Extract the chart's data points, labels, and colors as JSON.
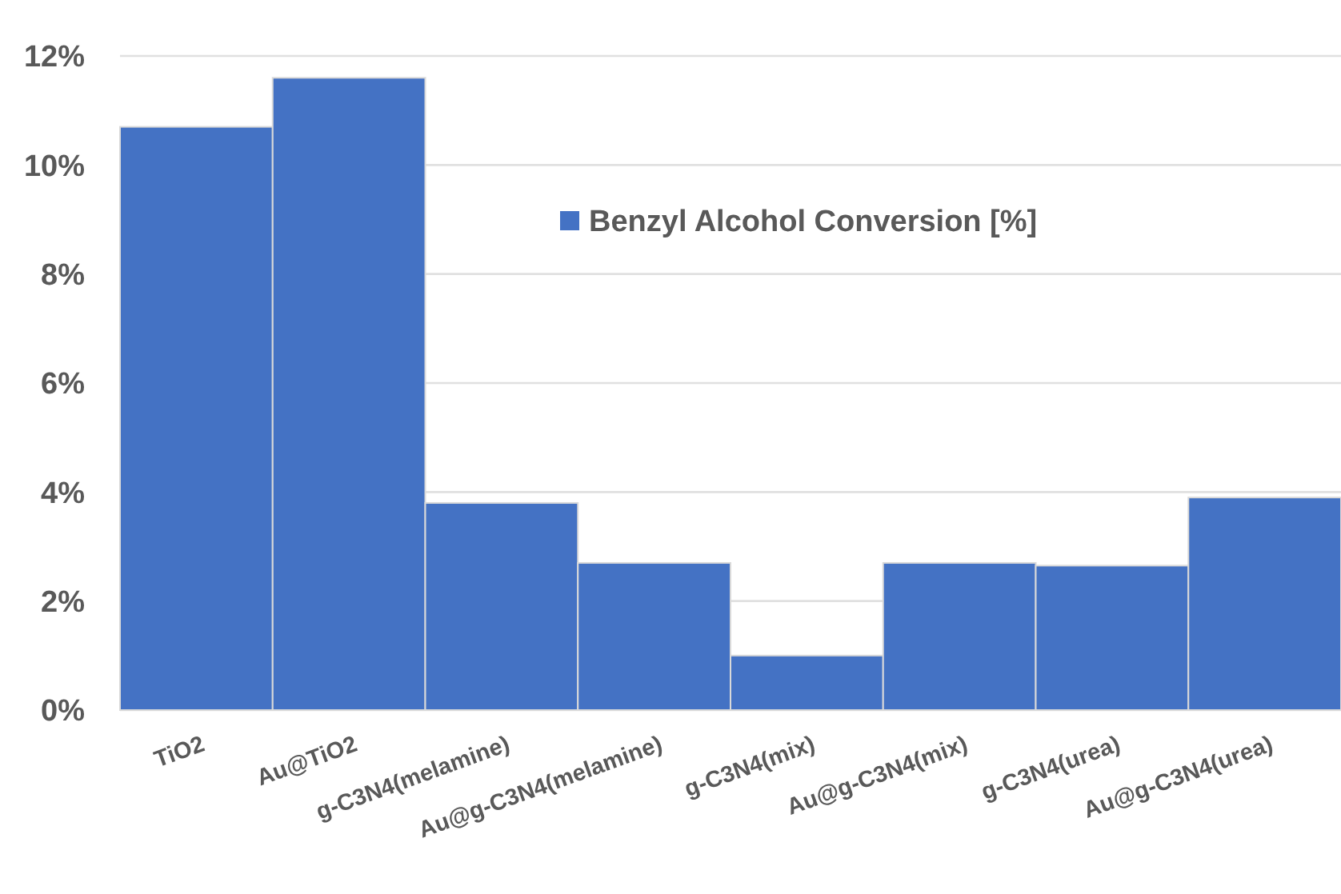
{
  "chart_data": {
    "type": "bar",
    "categories": [
      "TiO2",
      "Au@TiO2",
      "g-C3N4(melamine)",
      "Au@g-C3N4(melamine)",
      "g-C3N4(mix)",
      "Au@g-C3N4(mix)",
      "g-C3N4(urea)",
      "Au@g-C3N4(urea)"
    ],
    "series": [
      {
        "name": "Benzyl Alcohol Conversion [%]",
        "color": "#4472c4",
        "values": [
          10.7,
          11.6,
          3.8,
          2.7,
          1.0,
          2.7,
          2.65,
          3.9
        ]
      }
    ],
    "ylim": [
      0,
      12
    ],
    "yticks": [
      {
        "value": 0,
        "label": "0%"
      },
      {
        "value": 2,
        "label": "2%"
      },
      {
        "value": 4,
        "label": "4%"
      },
      {
        "value": 6,
        "label": "6%"
      },
      {
        "value": 8,
        "label": "8%"
      },
      {
        "value": 10,
        "label": "10%"
      },
      {
        "value": 12,
        "label": "12%"
      }
    ],
    "grid": "y",
    "legend": "top"
  }
}
